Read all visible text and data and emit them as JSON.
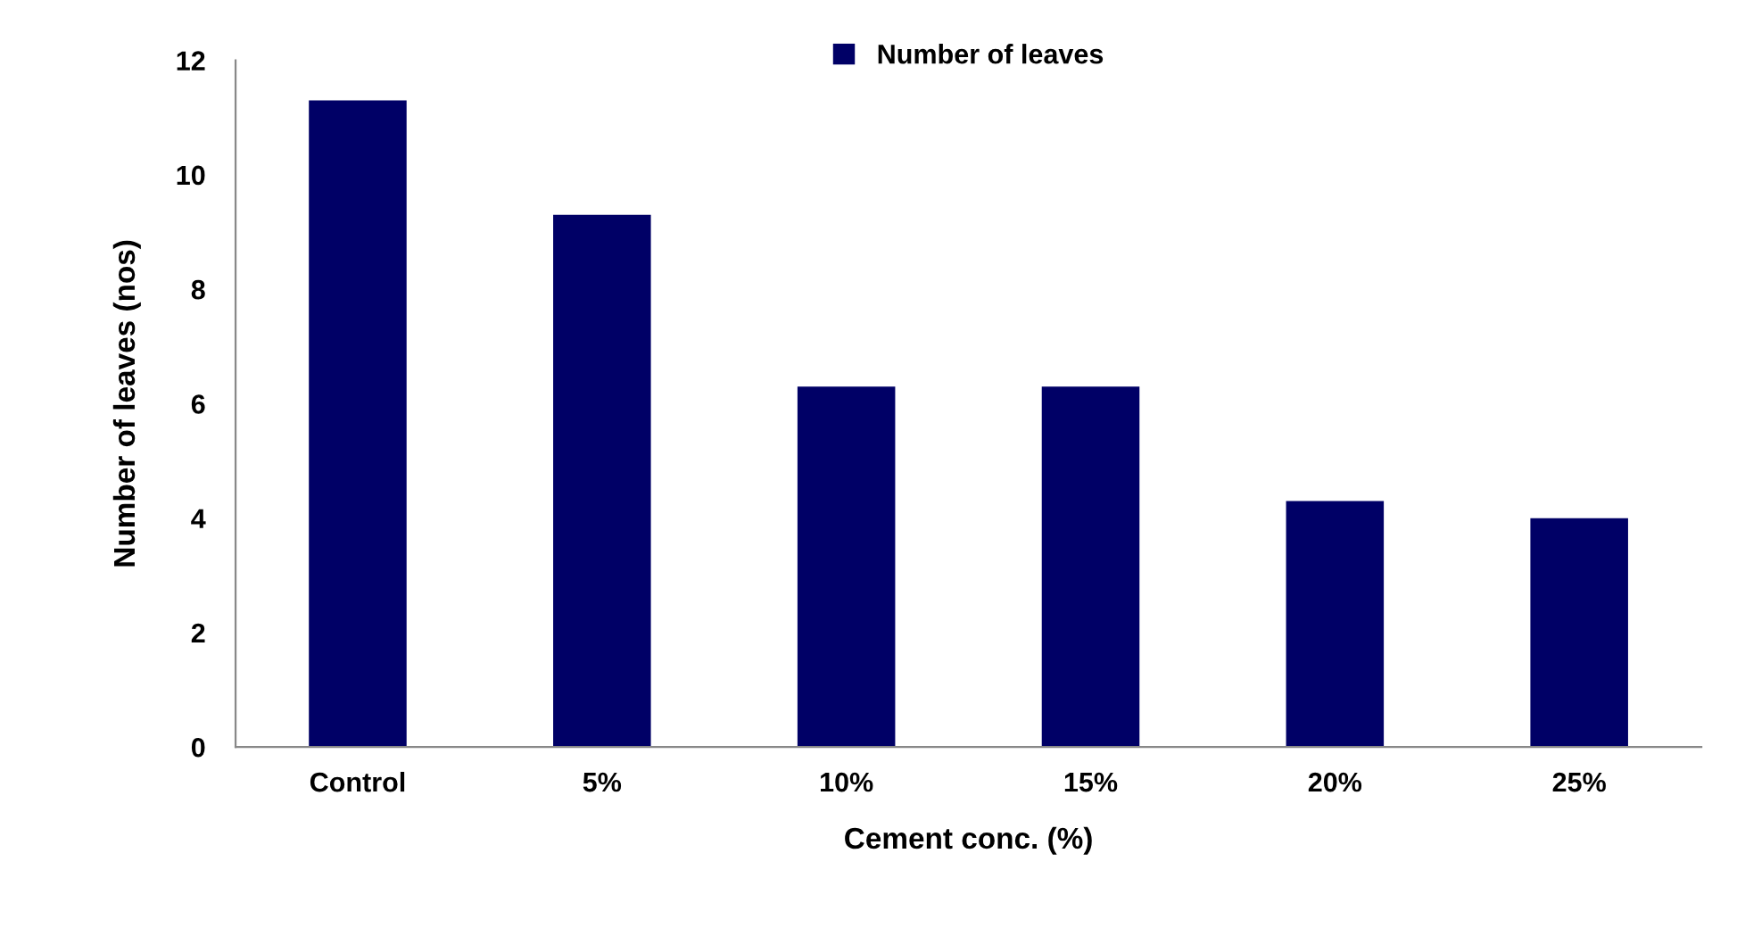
{
  "chart_data": {
    "type": "bar",
    "xlabel": "Cement conc. (%)",
    "ylabel": "Number of leaves (nos)",
    "categories": [
      "Control",
      "5%",
      "10%",
      "15%",
      "20%",
      "25%"
    ],
    "series": [
      {
        "name": "Number of leaves",
        "color": "#000066",
        "values": [
          11.3,
          9.3,
          6.3,
          6.3,
          4.3,
          4.0
        ]
      }
    ],
    "ylim": [
      0,
      12
    ],
    "yticks": [
      0,
      2,
      4,
      6,
      8,
      10,
      12
    ],
    "grid": false,
    "legend": "top"
  }
}
